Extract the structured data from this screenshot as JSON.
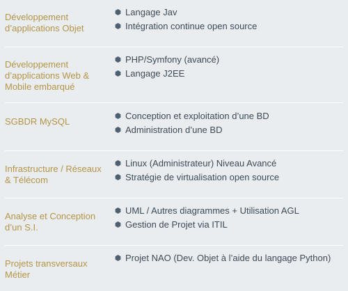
{
  "skills": [
    {
      "category": "Développement d’applications Objet",
      "items": [
        "Langage Jav",
        "Intégration continue open source"
      ]
    },
    {
      "category": "Développement d’applications Web & Mobile embarqué",
      "items": [
        "PHP/Symfony (avancé)",
        "Langage J2EE"
      ]
    },
    {
      "category": "SGBDR MySQL",
      "items": [
        "Conception et exploitation d’une BD",
        "Administration d’une BD"
      ]
    },
    {
      "category": "Infrastructure / Réseaux & Télécom",
      "items": [
        "Linux (Administrateur) Niveau Avancé",
        "Stratégie de virtualisation open source"
      ]
    },
    {
      "category": "Analyse et Conception d’un S.I.",
      "items": [
        "UML / Autres diagrammes + Utilisation AGL",
        "Gestion de Projet via ITIL"
      ]
    },
    {
      "category": "Projets transversaux Métier",
      "items": [
        "Projet NAO (Dev. Objet à l’aide du langage Python)"
      ]
    }
  ],
  "colors": {
    "background": "#e9edef",
    "category_text": "#b49448",
    "item_text": "#3e4a56",
    "bullet": "#4f6070",
    "separator": "#ffffff"
  },
  "icons": {
    "bullet": "hexagon-bullet-icon"
  }
}
